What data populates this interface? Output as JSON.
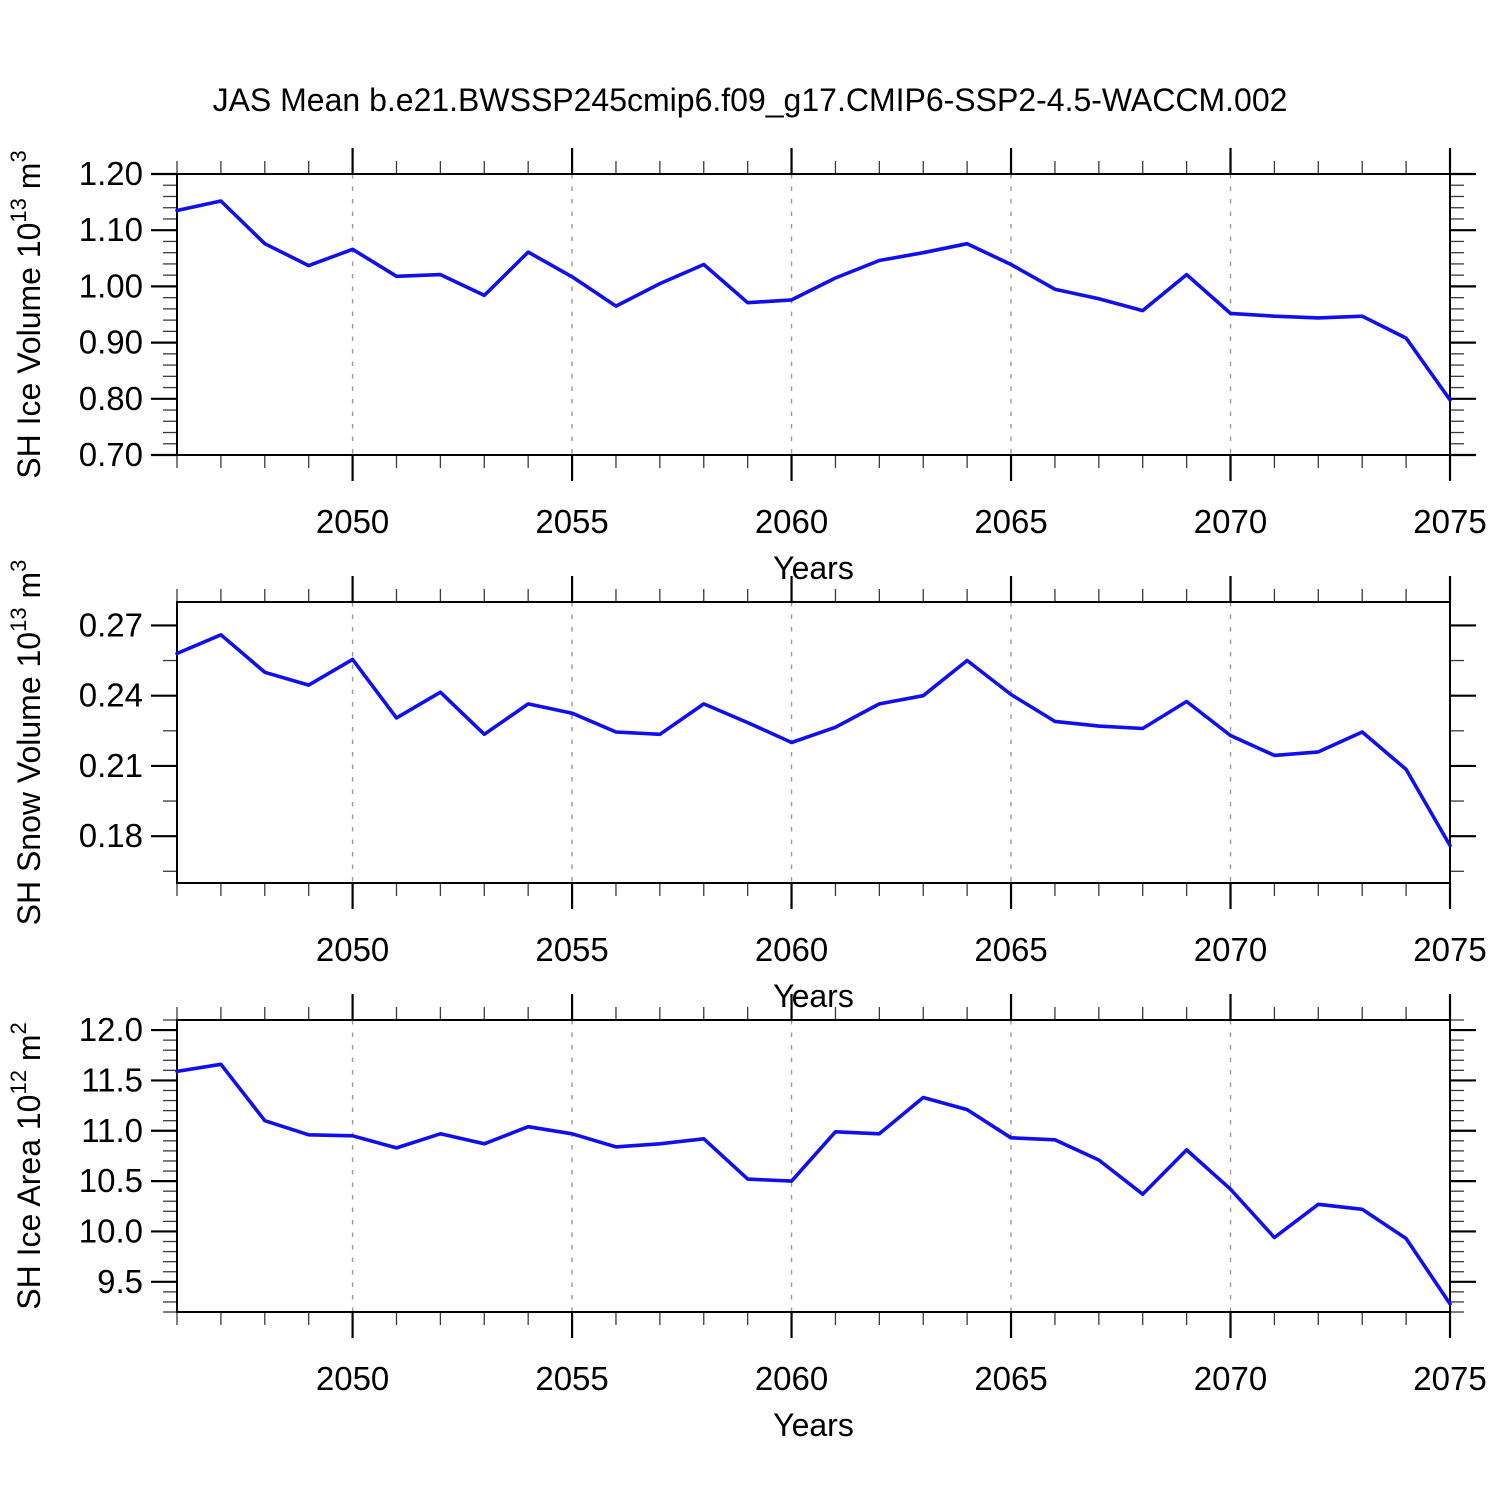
{
  "title": "JAS Mean b.e21.BWSSP245cmip6.f09_g17.CMIP6-SSP2-4.5-WACCM.002",
  "colors": {
    "line": "#0f0fef",
    "grid": "#999999",
    "axis": "#000000",
    "background": "#ffffff"
  },
  "x_axis": {
    "label": "Years",
    "range": [
      2046,
      2075
    ],
    "major_ticks": [
      2050,
      2055,
      2060,
      2065,
      2070,
      2075
    ],
    "major_tick_labels": [
      "2050",
      "2055",
      "2060",
      "2065",
      "2070",
      "2075"
    ],
    "minor_step": 1,
    "gridlines": [
      2050,
      2055,
      2060,
      2065,
      2070
    ]
  },
  "chart_data": [
    {
      "type": "line",
      "name": "sh-ice-volume",
      "ylabel": "SH Ice Volume 10^13 m^3",
      "ylabel_parts": [
        {
          "t": "SH Ice Volume 10",
          "sup": false
        },
        {
          "t": "13",
          "sup": true
        },
        {
          "t": " m",
          "sup": false
        },
        {
          "t": "3",
          "sup": true
        }
      ],
      "xlabel": "Years",
      "ylim": [
        0.7,
        1.2
      ],
      "yticks": [
        1.2,
        1.1,
        1.0,
        0.9,
        0.8,
        0.7
      ],
      "ytick_labels": [
        "1.20",
        "1.10",
        "1.00",
        "0.90",
        "0.80",
        "0.70"
      ],
      "y_minor_step": 0.02,
      "grid": "vertical-dashed",
      "legend": "none",
      "x": [
        2046,
        2047,
        2048,
        2049,
        2050,
        2051,
        2052,
        2053,
        2054,
        2055,
        2056,
        2057,
        2058,
        2059,
        2060,
        2061,
        2062,
        2063,
        2064,
        2065,
        2066,
        2067,
        2068,
        2069,
        2070,
        2071,
        2072,
        2073,
        2074,
        2075
      ],
      "values": [
        1.135,
        1.152,
        1.076,
        1.037,
        1.066,
        1.018,
        1.021,
        0.984,
        1.061,
        1.017,
        0.965,
        1.005,
        1.039,
        0.971,
        0.976,
        1.015,
        1.046,
        1.06,
        1.076,
        1.039,
        0.995,
        0.978,
        0.957,
        1.021,
        0.952,
        0.947,
        0.944,
        0.947,
        0.908,
        0.798
      ]
    },
    {
      "type": "line",
      "name": "sh-snow-volume",
      "ylabel": "SH Snow Volume 10^13 m^3",
      "ylabel_parts": [
        {
          "t": "SH Snow Volume 10",
          "sup": false
        },
        {
          "t": "13",
          "sup": true
        },
        {
          "t": " m",
          "sup": false
        },
        {
          "t": "3",
          "sup": true
        }
      ],
      "xlabel": "Years",
      "ylim": [
        0.16,
        0.28
      ],
      "yticks": [
        0.27,
        0.24,
        0.21,
        0.18
      ],
      "ytick_labels": [
        "0.27",
        "0.24",
        "0.21",
        "0.18"
      ],
      "y_minor_step": 0.015,
      "grid": "vertical-dashed",
      "legend": "none",
      "x": [
        2046,
        2047,
        2048,
        2049,
        2050,
        2051,
        2052,
        2053,
        2054,
        2055,
        2056,
        2057,
        2058,
        2059,
        2060,
        2061,
        2062,
        2063,
        2064,
        2065,
        2066,
        2067,
        2068,
        2069,
        2070,
        2071,
        2072,
        2073,
        2074,
        2075
      ],
      "values": [
        0.258,
        0.266,
        0.25,
        0.2445,
        0.2555,
        0.2305,
        0.2415,
        0.2235,
        0.2365,
        0.2325,
        0.2245,
        0.2235,
        0.2365,
        0.2285,
        0.22,
        0.2265,
        0.2365,
        0.24,
        0.255,
        0.2405,
        0.229,
        0.227,
        0.226,
        0.2375,
        0.223,
        0.2145,
        0.216,
        0.2245,
        0.2085,
        0.176
      ]
    },
    {
      "type": "line",
      "name": "sh-ice-area",
      "ylabel": "SH Ice Area 10^12 m^2",
      "ylabel_parts": [
        {
          "t": "SH Ice Area 10",
          "sup": false
        },
        {
          "t": "12",
          "sup": true
        },
        {
          "t": " m",
          "sup": false
        },
        {
          "t": "2",
          "sup": true
        }
      ],
      "xlabel": "Years",
      "ylim": [
        9.2,
        12.1
      ],
      "yticks": [
        12.0,
        11.5,
        11.0,
        10.5,
        10.0,
        9.5
      ],
      "ytick_labels": [
        "12.0",
        "11.5",
        "11.0",
        "10.5",
        "10.0",
        "9.5"
      ],
      "y_minor_step": 0.1,
      "grid": "vertical-dashed",
      "legend": "none",
      "x": [
        2046,
        2047,
        2048,
        2049,
        2050,
        2051,
        2052,
        2053,
        2054,
        2055,
        2056,
        2057,
        2058,
        2059,
        2060,
        2061,
        2062,
        2063,
        2064,
        2065,
        2066,
        2067,
        2068,
        2069,
        2070,
        2071,
        2072,
        2073,
        2074,
        2075
      ],
      "values": [
        11.59,
        11.66,
        11.1,
        10.96,
        10.95,
        10.83,
        10.97,
        10.87,
        11.04,
        10.97,
        10.84,
        10.87,
        10.92,
        10.52,
        10.5,
        10.99,
        10.97,
        11.33,
        11.21,
        10.93,
        10.91,
        10.71,
        10.37,
        10.81,
        10.42,
        9.94,
        10.27,
        10.22,
        9.93,
        9.28
      ]
    }
  ]
}
